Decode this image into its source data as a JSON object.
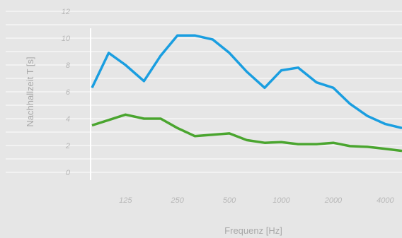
{
  "chart_data": {
    "type": "line",
    "xlabel": "Frequenz [Hz]",
    "ylabel": "Nachhallzeit T [s]",
    "ylim": [
      0,
      12
    ],
    "yticks": [
      "0",
      "2",
      "4",
      "6",
      "8",
      "10",
      "12"
    ],
    "x_scale": "log",
    "xlim": [
      80,
      5000
    ],
    "xticks": [
      {
        "value": 125,
        "label": "125"
      },
      {
        "value": 250,
        "label": "250"
      },
      {
        "value": 500,
        "label": "500"
      },
      {
        "value": 1000,
        "label": "1000"
      },
      {
        "value": 2000,
        "label": "2000"
      },
      {
        "value": 4000,
        "label": "4000"
      }
    ],
    "grid": true,
    "x": [
      80,
      100,
      125,
      160,
      200,
      250,
      315,
      400,
      500,
      630,
      800,
      1000,
      1250,
      1600,
      2000,
      2500,
      3150,
      4000,
      5000
    ],
    "series": [
      {
        "color": "#1a9ee0",
        "values": [
          6.3,
          8.9,
          8.0,
          6.8,
          8.7,
          10.2,
          10.2,
          9.9,
          8.9,
          7.5,
          6.3,
          7.6,
          7.8,
          6.7,
          6.3,
          5.1,
          4.2,
          3.6,
          3.3
        ]
      },
      {
        "color": "#4aa52f",
        "values": [
          3.5,
          3.9,
          4.3,
          4.0,
          4.0,
          3.3,
          2.7,
          2.8,
          2.9,
          2.4,
          2.2,
          2.25,
          2.1,
          2.1,
          2.2,
          1.95,
          1.9,
          1.75,
          1.6
        ]
      }
    ]
  }
}
